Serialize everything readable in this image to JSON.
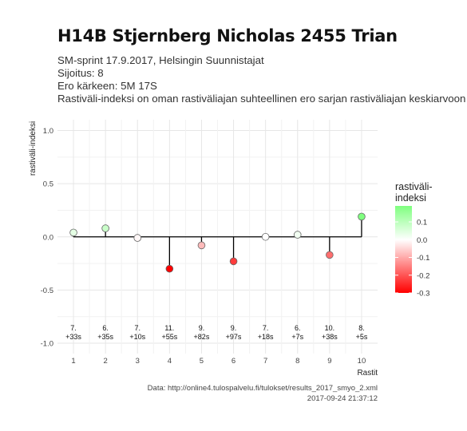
{
  "header": {
    "title": "H14B Stjernberg Nicholas 2455 Trian",
    "subtitle_1": "SM-sprint 17.9.2017, Helsingin Suunnistajat",
    "subtitle_2": "Sijoitus: 8",
    "subtitle_3": "Ero kärkeen: 5M 17S",
    "subtitle_4": "Rastiväli-indeksi on oman rastiväliajan suhteellinen ero sarjan rastiväliajan keskiarvoon"
  },
  "caption": {
    "source": "Data: http://online4.tulospalvelu.fi/tulokset/results_2017_smyo_2.xml",
    "timestamp": "2017-09-24 21:37:12"
  },
  "chart_data": {
    "type": "scatter",
    "style": "lollipop",
    "xlabel": "Rastit",
    "ylabel": "rastiväli-indeksi",
    "x": [
      1,
      2,
      3,
      4,
      5,
      6,
      7,
      8,
      9,
      10
    ],
    "y": [
      0.04,
      0.08,
      -0.01,
      -0.3,
      -0.08,
      -0.23,
      0.0,
      0.02,
      -0.17,
      0.19
    ],
    "point_labels": [
      [
        "7.",
        "+33s"
      ],
      [
        "6.",
        "+35s"
      ],
      [
        "7.",
        "+10s"
      ],
      [
        "11.",
        "+55s"
      ],
      [
        "9.",
        "+82s"
      ],
      [
        "9.",
        "+97s"
      ],
      [
        "7.",
        "+18s"
      ],
      [
        "6.",
        "+7s"
      ],
      [
        "10.",
        "+38s"
      ],
      [
        "8.",
        "+5s"
      ]
    ],
    "xlim": [
      0.5,
      10.5
    ],
    "ylim": [
      -1.0,
      1.0
    ],
    "x_ticks": [
      "1",
      "2",
      "3",
      "4",
      "5",
      "6",
      "7",
      "8",
      "9",
      "10"
    ],
    "y_ticks": [
      "1.0",
      "0.5",
      "0.0",
      "-0.5",
      "-1.0"
    ],
    "y_tick_values": [
      1.0,
      0.5,
      0.0,
      -0.5,
      -1.0
    ],
    "grid": true,
    "legend": {
      "title_line1": "rastiväli-",
      "title_line2": "indeksi",
      "placement": "right",
      "ticks": [
        "0.1",
        "0.0",
        "-0.1",
        "-0.2",
        "-0.3"
      ],
      "tick_values": [
        0.1,
        0.0,
        -0.1,
        -0.2,
        -0.3
      ],
      "range": [
        -0.3,
        0.19
      ]
    },
    "colors": {
      "high": "#7fff7f",
      "mid": "#ffffff",
      "low": "#ff0000",
      "zero_line": "#000000",
      "stem": "#000000",
      "grid_major": "#e6e6e6",
      "grid_minor": "#f2f2f2"
    }
  }
}
